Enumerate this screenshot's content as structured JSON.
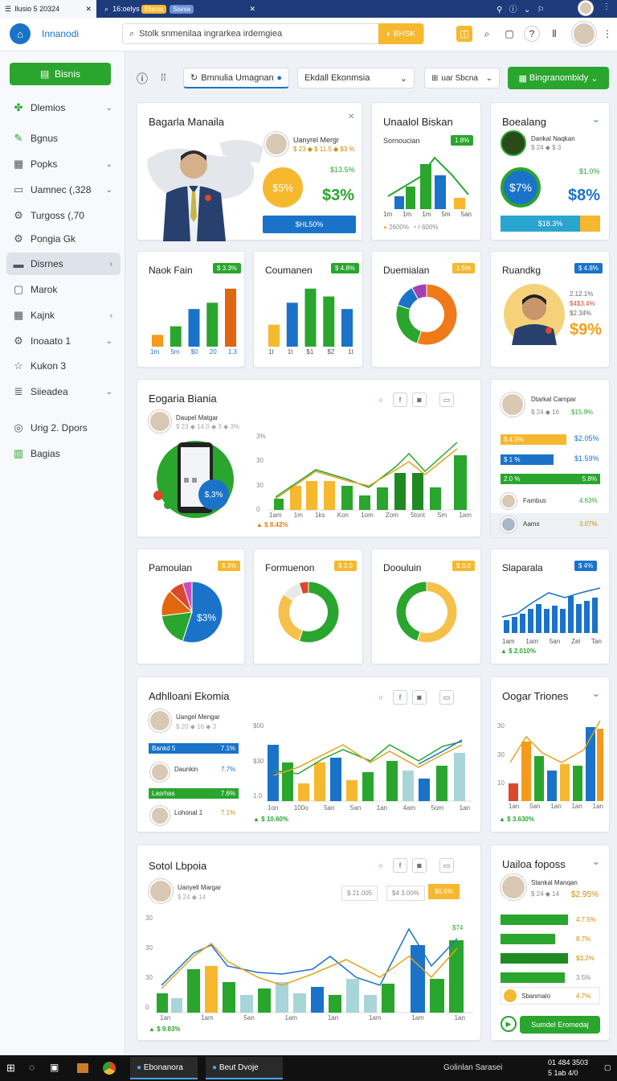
{
  "browser": {
    "tab1": "Ilusio 5 20324",
    "tab2": "16:oelys",
    "tab2_chip1": "Elisnts",
    "tab2_chip2": "Sisnia"
  },
  "header": {
    "app_name": "Innanodi",
    "search_placeholder": "Stolk snmenilaa ingrarkea irdemgiea",
    "search_button": "BHSK"
  },
  "sidebar": {
    "new_button": "Bisnis",
    "items": [
      {
        "label": "Dlemios",
        "icon": "leaf-icon",
        "chevron": "⌄"
      },
      {
        "label": "Bgnus",
        "icon": "pen-icon",
        "chevron": ""
      },
      {
        "label": "Popks",
        "icon": "calendar-icon",
        "chevron": "⌄"
      },
      {
        "label": "Uamnec (,328",
        "icon": "monitor-icon",
        "chevron": "⌄"
      },
      {
        "label": "Turgoss (,70",
        "icon": "gear-icon",
        "chevron": ""
      },
      {
        "label": "Pongia Gk",
        "icon": "gear-icon",
        "chevron": ""
      },
      {
        "label": "Disrnes",
        "icon": "folder-icon",
        "chevron": "›"
      },
      {
        "label": "Marok",
        "icon": "box-icon",
        "chevron": ""
      },
      {
        "label": "Kajnk",
        "icon": "grid-icon",
        "chevron": "›"
      },
      {
        "label": "Inoaato 1",
        "icon": "gear-icon",
        "chevron": "⌄"
      },
      {
        "label": "Kukon 3",
        "icon": "star-icon",
        "chevron": ""
      },
      {
        "label": "Siieadea",
        "icon": "list-icon",
        "chevron": "⌄"
      },
      {
        "label": "Urig 2. Dpors",
        "icon": "circle-icon",
        "chevron": ""
      },
      {
        "label": "Bagias",
        "icon": "panel-icon",
        "chevron": ""
      }
    ]
  },
  "toolbar": {
    "tab_label": "Bmnulia Umagnan",
    "select_value": "Ekdall Ekonmsia",
    "filter_label": "uar Sbcna",
    "action_button": "Bingranombidy"
  },
  "cards": {
    "c1": {
      "title": "Bagarla Manaila",
      "person": "Uanyrel Mergr",
      "person_sub": "$ 23 ◆ $ 11.5 ◆ $3 %",
      "pct1": "$5%",
      "pct2": "$3%",
      "pct_sm": "$13.5%",
      "bar_label": "$HL50%"
    },
    "c2": {
      "title": "Unaalol Biskan",
      "subtitle": "Sornoucian",
      "badge": "1.8%",
      "axis": [
        "1m",
        "1m",
        "1m",
        "5m",
        "5an"
      ],
      "foot1": "2600%",
      "foot2": "/ 600%"
    },
    "c3": {
      "title": "Boealang",
      "person": "Dankal Naqkan",
      "person_sub": "$ 24 ◆ $ 3",
      "pct_circle": "$7%",
      "pct_big": "$8%",
      "pct_sm": "$1.0%",
      "bar_label": "$18.3%"
    },
    "c4": {
      "title": "Naok Fain",
      "badge": "$ 3.3%",
      "axis": [
        "1m",
        "5m",
        "$0",
        "20",
        "1.3"
      ]
    },
    "c5": {
      "title": "Coumanen",
      "badge": "$ 4.8%",
      "axis": [
        "1t",
        "1t",
        "$1",
        "$2",
        "1t"
      ]
    },
    "c6": {
      "title": "Duemialan",
      "badge": "1.5%"
    },
    "c7": {
      "title": "Ruandkg",
      "badge": "$ 4.8%",
      "v1": "2.12.1%",
      "v2": "$4$3.4%",
      "v3": "$2.34%",
      "big": "$9%"
    },
    "c8": {
      "title": "Eogaria Biania",
      "person": "Daupel Matgar",
      "person_sub": "$ 23 ◆ 14.0 ◆ 3 ◆ 3%",
      "bubble": "$,3%",
      "yaxis": [
        "3%",
        "30",
        "30",
        "0"
      ],
      "axis": [
        "1am",
        "1m",
        "1ks",
        "Kon",
        "1om",
        "Zom",
        "5tont",
        "Sm",
        "1am"
      ],
      "foot": "$ 8.42%"
    },
    "c9": {
      "person": "Dtarkal Campar",
      "person_sub": "$ 24 ◆ 16",
      "row0_val": "$15.9%",
      "bars": [
        {
          "label": "$.4.5%",
          "val": "$2.05%"
        },
        {
          "label": "$ 1 %",
          "val": "$1.59%"
        },
        {
          "label": "2.0 %",
          "val": "5.8%"
        }
      ],
      "rows": [
        {
          "name": "Fambus",
          "val": "4.63%"
        },
        {
          "name": "Aams",
          "val": "3.07%"
        }
      ]
    },
    "c10": {
      "title": "Pamoulan",
      "badge": "$ 3%",
      "center": "$3%"
    },
    "c11": {
      "title": "Formuenon",
      "badge": "$ 3.0"
    },
    "c12": {
      "title": "Doouluin",
      "badge": "$ 3.0"
    },
    "c13": {
      "title": "Slaparala",
      "badge": "$ 4%",
      "axis": [
        "1am",
        "1am",
        "5an",
        "Zel",
        "Tan"
      ],
      "foot": "$ 2.010%"
    },
    "c14": {
      "title": "Adhlloani Ekomia",
      "person": "Uangel Mengar",
      "person_sub": "$ 20 ◆ 16 ◆ 3",
      "rows": [
        {
          "name": "Bankd 5",
          "val": "7.1%",
          "color": "#1a73c9"
        },
        {
          "name": "Daunkin",
          "val": "7.7%",
          "color": "#fff"
        },
        {
          "name": "Lasrhas",
          "val": "7.6%",
          "color": "#2aa52e"
        },
        {
          "name": "Lohonal 1",
          "val": "7.1%",
          "color": "#fff"
        }
      ],
      "yaxis": [
        "$00",
        "$30",
        "1.0"
      ],
      "axis": [
        "1on",
        "100o",
        "5an",
        "5an",
        "1an",
        "4am",
        "5om",
        "1an"
      ],
      "foot": "$ 10.60%"
    },
    "c15": {
      "title": "Oogar Triones",
      "yaxis": [
        "30",
        "30",
        "10"
      ],
      "axis": [
        "1an",
        "5an",
        "1an",
        "1an",
        "1an"
      ],
      "foot": "$ 3.630%"
    },
    "c16": {
      "title": "Sotol Lbpoia",
      "person": "Uanyell Margar",
      "person_sub": "$ 24 ◆ 14",
      "stat1": "$ 21.005",
      "stat2": "$4 3.00%",
      "stat3": "$6.5%",
      "yaxis": [
        "30",
        "30",
        "30",
        "0"
      ],
      "axis": [
        "1an",
        "1am",
        "5an",
        "1am",
        "1an",
        "1am",
        "1am",
        "1an"
      ],
      "top": "$74",
      "foot": "$ 9.83%"
    },
    "c17": {
      "title": "Uailoa foposs",
      "person": "Stankal Manqan",
      "person_sub": "$ 24 ◆ 14",
      "row0_val": "$2.95%",
      "bars": [
        {
          "val": "4.7.5%"
        },
        {
          "val": "8.7%"
        },
        {
          "val": "$3.2%"
        },
        {
          "val": "3.5%"
        }
      ],
      "last_name": "Sbanmalo",
      "last_val": "4.7%",
      "button": "Sumdel Eromedaj"
    }
  },
  "taskbar": {
    "app1": "Ebonanora",
    "app2": "Beut Dvoje",
    "right1": "Golinlan Sarasei",
    "time": "01 484 3503",
    "date": "5 1ab 4/0"
  },
  "chart_data": [
    {
      "type": "bar",
      "title": "Naok Fain",
      "categories": [
        "1m",
        "5m",
        "$0",
        "20",
        "1.3"
      ],
      "values": [
        15,
        26,
        48,
        56,
        74
      ]
    },
    {
      "type": "bar",
      "title": "Coumanen",
      "categories": [
        "1t",
        "1t",
        "$1",
        "$2",
        "1t"
      ],
      "values": [
        28,
        56,
        74,
        64,
        48
      ]
    },
    {
      "type": "pie",
      "title": "Duemialan",
      "values": [
        55,
        25,
        12,
        8
      ]
    },
    {
      "type": "pie",
      "title": "Pamoulan",
      "values": [
        55,
        18,
        14,
        8,
        5
      ]
    },
    {
      "type": "pie",
      "title": "Formuenon",
      "values": [
        55,
        30,
        10,
        5
      ]
    },
    {
      "type": "pie",
      "title": "Doouluin",
      "values": [
        55,
        45
      ]
    }
  ]
}
